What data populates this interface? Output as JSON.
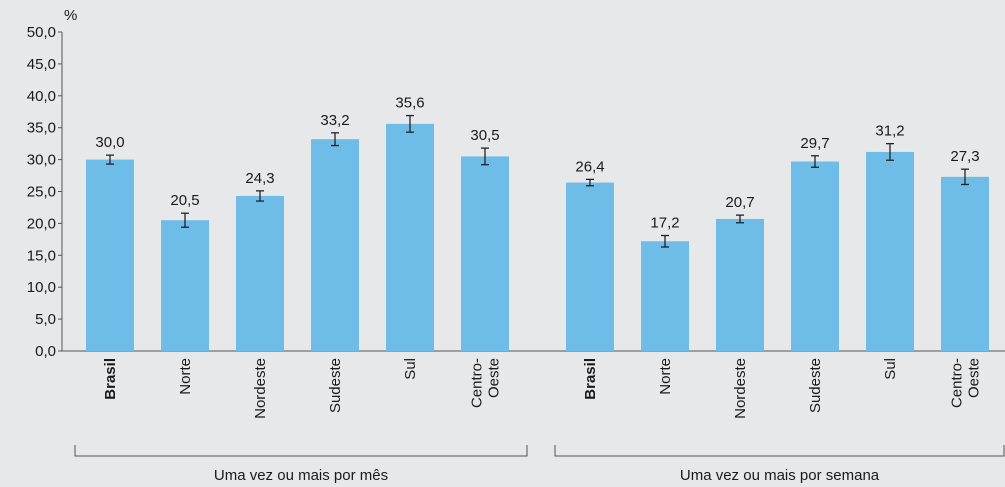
{
  "chart_data": {
    "type": "bar",
    "y_unit": "%",
    "color": "#6dbde8",
    "ylim": [
      0,
      50
    ],
    "yticks": [
      {
        "value": 0,
        "label": "0,0"
      },
      {
        "value": 5,
        "label": "5,0"
      },
      {
        "value": 10,
        "label": "10,0"
      },
      {
        "value": 15,
        "label": "15,0"
      },
      {
        "value": 20,
        "label": "20,0"
      },
      {
        "value": 25,
        "label": "25,0"
      },
      {
        "value": 30,
        "label": "30,0"
      },
      {
        "value": 35,
        "label": "35,0"
      },
      {
        "value": 40,
        "label": "40,0"
      },
      {
        "value": 45,
        "label": "45,0"
      },
      {
        "value": 50,
        "label": "50,0"
      }
    ],
    "groups": [
      {
        "name": "Uma vez ou mais por mês",
        "categories": [
          "Brasil",
          "Norte",
          "Nordeste",
          "Sudeste",
          "Sul",
          "Centro-\nOeste"
        ],
        "values": [
          30.0,
          20.5,
          24.3,
          33.2,
          35.6,
          30.5
        ],
        "value_labels": [
          "30,0",
          "20,5",
          "24,3",
          "33,2",
          "35,6",
          "30,5"
        ],
        "errors": [
          0.7,
          1.1,
          0.8,
          1.0,
          1.3,
          1.3
        ]
      },
      {
        "name": "Uma vez ou mais por semana",
        "categories": [
          "Brasil",
          "Norte",
          "Nordeste",
          "Sudeste",
          "Sul",
          "Centro-\nOeste"
        ],
        "values": [
          26.4,
          17.2,
          20.7,
          29.7,
          31.2,
          27.3
        ],
        "value_labels": [
          "26,4",
          "17,2",
          "20,7",
          "29,7",
          "31,2",
          "27,3"
        ],
        "errors": [
          0.5,
          0.9,
          0.6,
          0.9,
          1.3,
          1.2
        ]
      }
    ]
  }
}
